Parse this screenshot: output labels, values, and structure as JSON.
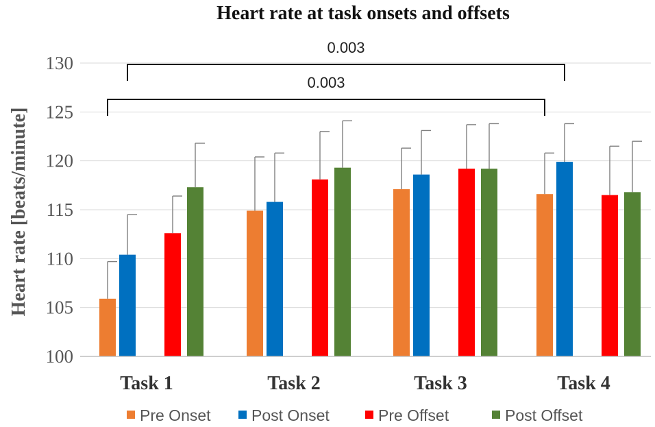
{
  "chart_data": {
    "type": "bar",
    "title": "Heart rate at task onsets and offsets",
    "xlabel": "",
    "ylabel": "Heart rate [beats/minute]",
    "ylim": [
      100,
      130
    ],
    "yticks": [
      100,
      105,
      110,
      115,
      120,
      125,
      130
    ],
    "grid": true,
    "legend_position": "bottom",
    "categories": [
      "Task 1",
      "Task 2",
      "Task 3",
      "Task 4"
    ],
    "series": [
      {
        "name": "Pre Onset",
        "color": "#ED7D31",
        "values": [
          105.9,
          114.9,
          117.1,
          116.6
        ],
        "errors": [
          3.8,
          5.5,
          4.2,
          4.2
        ]
      },
      {
        "name": "Post Onset",
        "color": "#0070C0",
        "values": [
          110.4,
          115.8,
          118.6,
          119.9
        ],
        "errors": [
          4.1,
          5.0,
          4.5,
          3.9
        ]
      },
      {
        "name": "Pre Offset",
        "color": "#FF0000",
        "values": [
          112.6,
          118.1,
          119.2,
          116.5
        ],
        "errors": [
          3.8,
          4.9,
          4.5,
          5.0
        ]
      },
      {
        "name": "Post Offset",
        "color": "#548235",
        "values": [
          117.3,
          119.3,
          119.2,
          116.8
        ],
        "errors": [
          4.5,
          4.8,
          4.6,
          5.2
        ]
      }
    ],
    "annotations": [
      {
        "label": "0.003",
        "from": {
          "category": "Task 1",
          "series": "Post Onset"
        },
        "to": {
          "category": "Task 4",
          "series": "Post Onset"
        }
      },
      {
        "label": "0.003",
        "from": {
          "category": "Task 1",
          "series": "Pre Onset"
        },
        "to": {
          "category": "Task 4",
          "series": "Pre Onset"
        }
      }
    ]
  }
}
